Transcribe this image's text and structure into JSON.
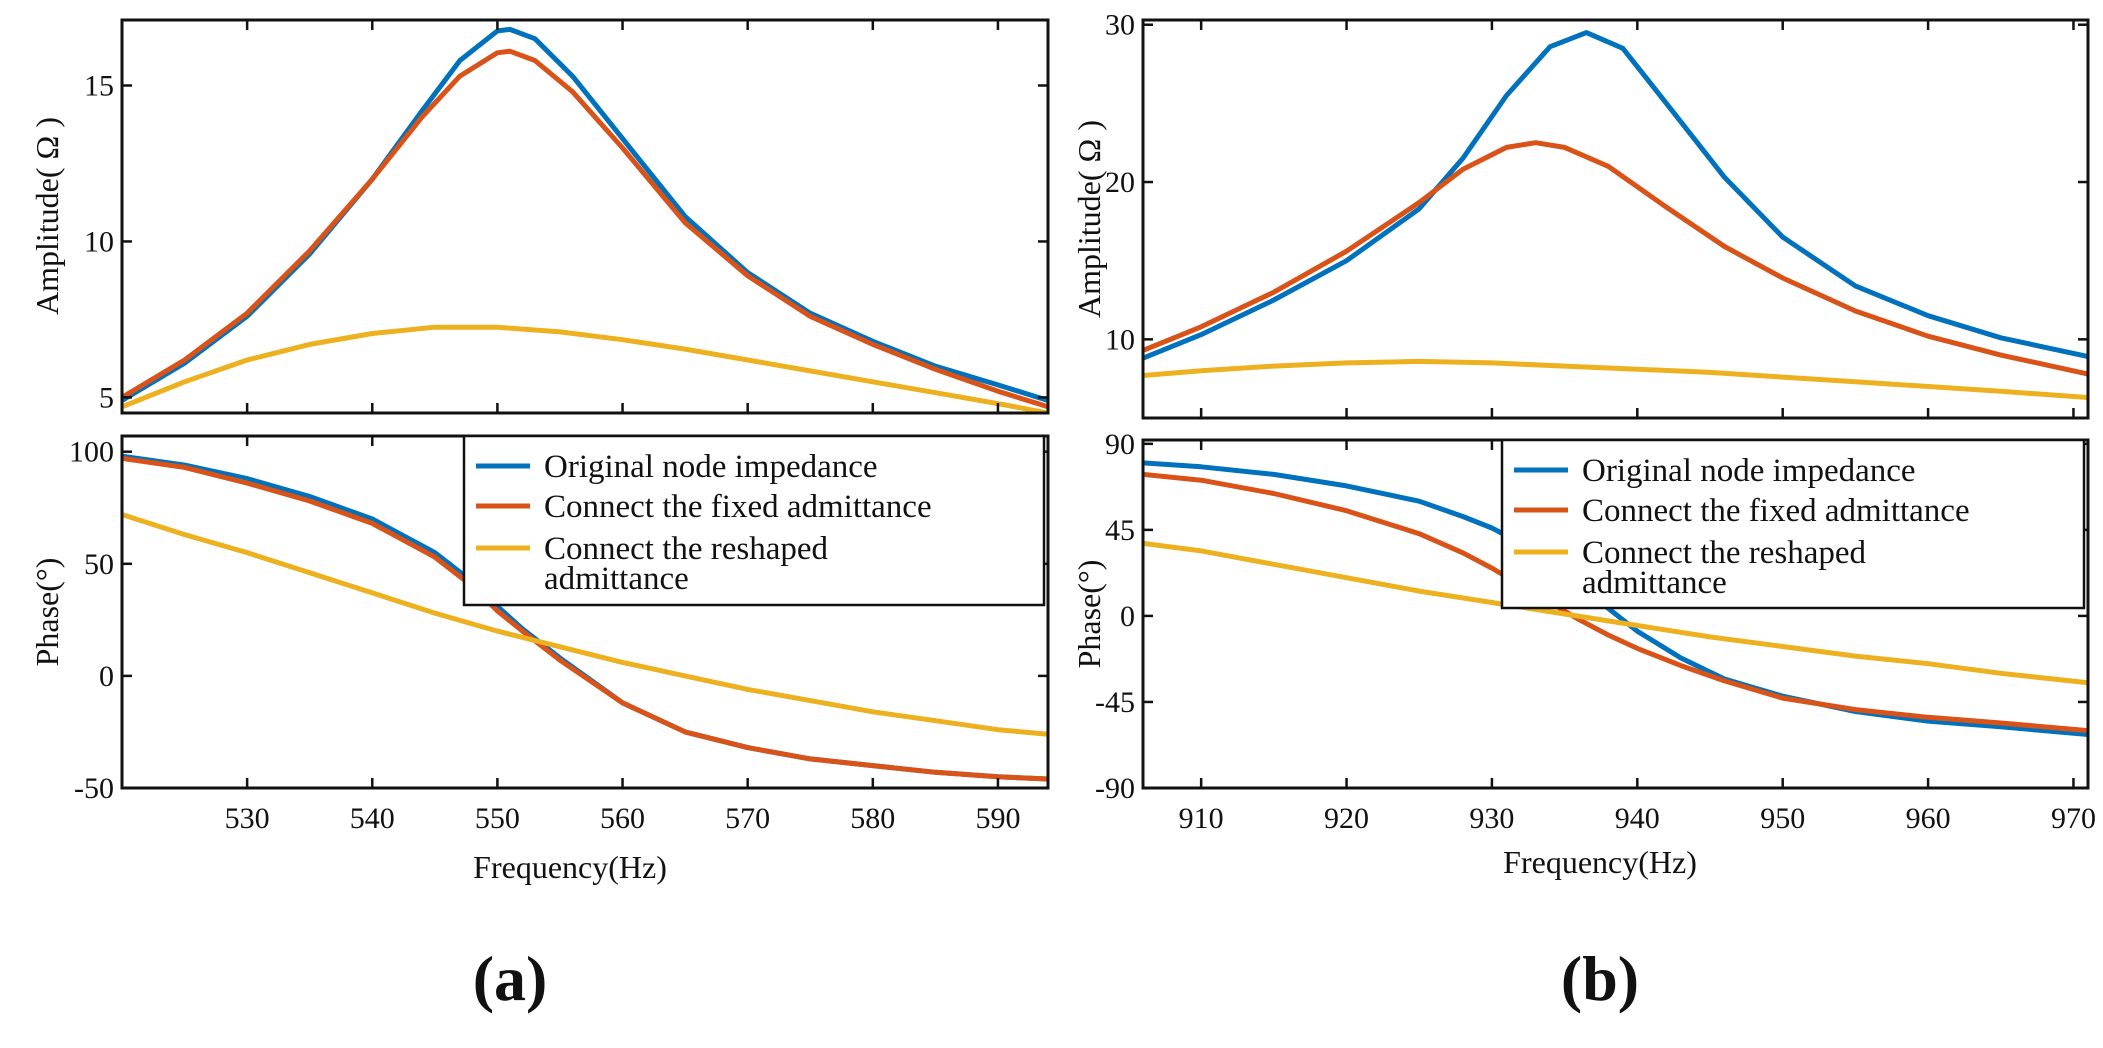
{
  "colors": {
    "blue": "#0072BD",
    "orange": "#D95319",
    "yellow": "#EDB120"
  },
  "chart_data": [
    {
      "id": "a-amp",
      "panel": "(a)",
      "type": "line",
      "title": "",
      "xlabel": "",
      "ylabel": "Amplitude( Ω )",
      "xlim": [
        520,
        594
      ],
      "ylim": [
        4.5,
        17.1
      ],
      "xticks": [
        530,
        540,
        550,
        560,
        570,
        580,
        590
      ],
      "yticks": [
        5,
        10,
        15
      ],
      "show_xtick_labels": false,
      "legend": null,
      "series": [
        {
          "name": "Original node impedance",
          "color": "blue",
          "x": [
            520,
            525,
            530,
            535,
            540,
            544,
            547,
            550,
            551,
            553,
            556,
            560,
            565,
            570,
            575,
            580,
            585,
            590,
            594
          ],
          "y": [
            4.9,
            6.1,
            7.6,
            9.6,
            12.0,
            14.2,
            15.8,
            16.75,
            16.8,
            16.5,
            15.3,
            13.3,
            10.8,
            9.0,
            7.7,
            6.8,
            6.0,
            5.4,
            4.9
          ]
        },
        {
          "name": "Connect the fixed admittance",
          "color": "orange",
          "x": [
            520,
            525,
            530,
            535,
            540,
            544,
            547,
            550,
            551,
            553,
            556,
            560,
            565,
            570,
            575,
            580,
            585,
            590,
            594
          ],
          "y": [
            5.0,
            6.2,
            7.7,
            9.7,
            12.0,
            14.0,
            15.3,
            16.05,
            16.1,
            15.8,
            14.8,
            13.0,
            10.6,
            8.9,
            7.6,
            6.7,
            5.9,
            5.2,
            4.7
          ]
        },
        {
          "name": "Connect the reshaped admittance",
          "color": "yellow",
          "x": [
            520,
            525,
            530,
            535,
            540,
            545,
            550,
            555,
            560,
            565,
            570,
            575,
            580,
            585,
            590,
            594
          ],
          "y": [
            4.7,
            5.5,
            6.2,
            6.7,
            7.05,
            7.25,
            7.25,
            7.1,
            6.85,
            6.55,
            6.2,
            5.85,
            5.5,
            5.15,
            4.8,
            4.5
          ]
        }
      ]
    },
    {
      "id": "a-phase",
      "panel": "(a)",
      "type": "line",
      "title": "",
      "xlabel": "Frequency(Hz)",
      "ylabel": "Phase(°)",
      "xlim": [
        520,
        594
      ],
      "ylim": [
        -50,
        107
      ],
      "xticks": [
        530,
        540,
        550,
        560,
        570,
        580,
        590
      ],
      "yticks": [
        -50,
        0,
        50,
        100
      ],
      "show_xtick_labels": true,
      "legend": "top-right",
      "series": [
        {
          "name": "Original node impedance",
          "color": "blue",
          "x": [
            520,
            525,
            530,
            535,
            540,
            545,
            548,
            550,
            552,
            555,
            560,
            565,
            570,
            575,
            580,
            585,
            590,
            594
          ],
          "y": [
            98,
            94,
            88,
            80,
            70,
            55,
            42,
            31,
            21,
            8,
            -12,
            -25,
            -32,
            -37,
            -40,
            -43,
            -45,
            -46
          ]
        },
        {
          "name": "Connect the fixed admittance",
          "color": "orange",
          "x": [
            520,
            525,
            530,
            535,
            540,
            545,
            548,
            550,
            552,
            555,
            560,
            565,
            570,
            575,
            580,
            585,
            590,
            594
          ],
          "y": [
            97,
            93,
            86,
            78,
            68,
            53,
            40,
            29,
            20,
            7,
            -12,
            -25,
            -32,
            -37,
            -40,
            -43,
            -45,
            -46
          ]
        },
        {
          "name": "Connect the reshaped admittance",
          "color": "yellow",
          "x": [
            520,
            525,
            530,
            535,
            540,
            545,
            550,
            555,
            560,
            565,
            570,
            575,
            580,
            585,
            590,
            594
          ],
          "y": [
            72,
            63,
            55,
            46,
            37,
            28,
            20,
            13,
            6,
            0,
            -6,
            -11,
            -16,
            -20,
            -24,
            -26
          ]
        }
      ]
    },
    {
      "id": "b-amp",
      "panel": "(b)",
      "type": "line",
      "title": "",
      "xlabel": "",
      "ylabel": "Amplitude( Ω )",
      "xlim": [
        906,
        971
      ],
      "ylim": [
        5,
        30.3
      ],
      "xticks": [
        910,
        920,
        930,
        940,
        950,
        960,
        970
      ],
      "yticks": [
        10,
        20,
        30
      ],
      "show_xtick_labels": false,
      "legend": null,
      "series": [
        {
          "name": "Original node impedance",
          "color": "blue",
          "x": [
            906,
            910,
            915,
            920,
            925,
            928,
            931,
            934,
            936.5,
            939,
            942,
            946,
            950,
            955,
            960,
            965,
            971
          ],
          "y": [
            8.8,
            10.3,
            12.5,
            15.0,
            18.3,
            21.5,
            25.5,
            28.6,
            29.5,
            28.5,
            25.0,
            20.3,
            16.5,
            13.4,
            11.5,
            10.1,
            8.9
          ]
        },
        {
          "name": "Connect the fixed admittance",
          "color": "orange",
          "x": [
            906,
            910,
            915,
            920,
            925,
            928,
            931,
            933,
            935,
            938,
            942,
            946,
            950,
            955,
            960,
            965,
            971
          ],
          "y": [
            9.3,
            10.8,
            13.0,
            15.6,
            18.7,
            20.8,
            22.2,
            22.5,
            22.2,
            21.0,
            18.4,
            15.9,
            13.9,
            11.8,
            10.2,
            9.0,
            7.8
          ]
        },
        {
          "name": "Connect the reshaped admittance",
          "color": "yellow",
          "x": [
            906,
            910,
            915,
            920,
            925,
            930,
            935,
            940,
            945,
            950,
            955,
            960,
            965,
            971
          ],
          "y": [
            7.7,
            8.0,
            8.3,
            8.5,
            8.6,
            8.5,
            8.3,
            8.1,
            7.9,
            7.6,
            7.3,
            7.0,
            6.7,
            6.3
          ]
        }
      ]
    },
    {
      "id": "b-phase",
      "panel": "(b)",
      "type": "line",
      "title": "",
      "xlabel": "Frequency(Hz)",
      "ylabel": "Phase(°)",
      "xlim": [
        906,
        971
      ],
      "ylim": [
        -90,
        92
      ],
      "xticks": [
        910,
        920,
        930,
        940,
        950,
        960,
        970
      ],
      "yticks": [
        -90,
        -45,
        0,
        45,
        90
      ],
      "show_xtick_labels": true,
      "legend": "top-right",
      "series": [
        {
          "name": "Original node impedance",
          "color": "blue",
          "x": [
            906,
            910,
            915,
            920,
            925,
            928,
            930,
            932,
            934,
            936,
            938,
            940,
            943,
            946,
            950,
            955,
            960,
            965,
            971
          ],
          "y": [
            80,
            78,
            74,
            68,
            60,
            52,
            46,
            38,
            28,
            16,
            4,
            -8,
            -22,
            -33,
            -42,
            -50,
            -55,
            -58,
            -62
          ]
        },
        {
          "name": "Connect the fixed admittance",
          "color": "orange",
          "x": [
            906,
            910,
            915,
            920,
            925,
            928,
            930,
            932,
            934,
            936,
            938,
            940,
            943,
            946,
            950,
            955,
            960,
            965,
            971
          ],
          "y": [
            74,
            71,
            64,
            55,
            43,
            33,
            25,
            16,
            7,
            -2,
            -10,
            -17,
            -26,
            -34,
            -43,
            -49,
            -53,
            -56,
            -60
          ]
        },
        {
          "name": "Connect the reshaped admittance",
          "color": "yellow",
          "x": [
            906,
            910,
            915,
            920,
            925,
            930,
            935,
            940,
            945,
            950,
            955,
            960,
            965,
            971
          ],
          "y": [
            38,
            34,
            27,
            20,
            13,
            7,
            1,
            -5,
            -11,
            -16,
            -21,
            -25,
            -30,
            -35
          ]
        }
      ]
    }
  ],
  "legend_entries": [
    "Original node impedance",
    "Connect the fixed admittance",
    "Connect the reshaped admittance"
  ],
  "legend_entries_lines": [
    [
      "Original node impedance"
    ],
    [
      "Connect the fixed admittance"
    ],
    [
      "Connect the reshaped",
      "admittance"
    ]
  ],
  "panel_labels": [
    "(a)",
    "(b)"
  ]
}
